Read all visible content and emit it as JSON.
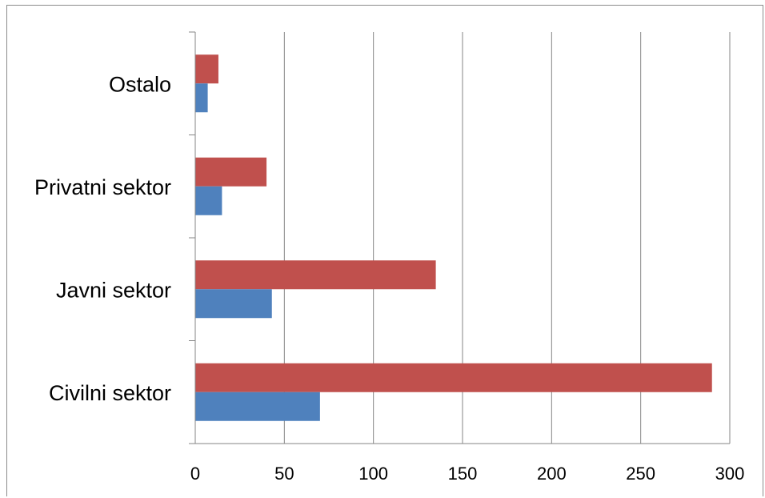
{
  "chart_data": {
    "type": "bar",
    "orientation": "horizontal",
    "categories": [
      "Ostalo",
      "Privatni sektor",
      "Javni sektor",
      "Civilni sektor"
    ],
    "series": [
      {
        "values": [
          13,
          40,
          135,
          290
        ],
        "color": "#c0504d"
      },
      {
        "values": [
          7,
          15,
          43,
          70
        ],
        "color": "#4f81bd"
      }
    ],
    "xlim": [
      0,
      300
    ],
    "xticks": [
      0,
      50,
      100,
      150,
      200,
      250,
      300
    ],
    "grid": "vertical",
    "legend": "none",
    "title": "",
    "xlabel": "",
    "ylabel": ""
  }
}
